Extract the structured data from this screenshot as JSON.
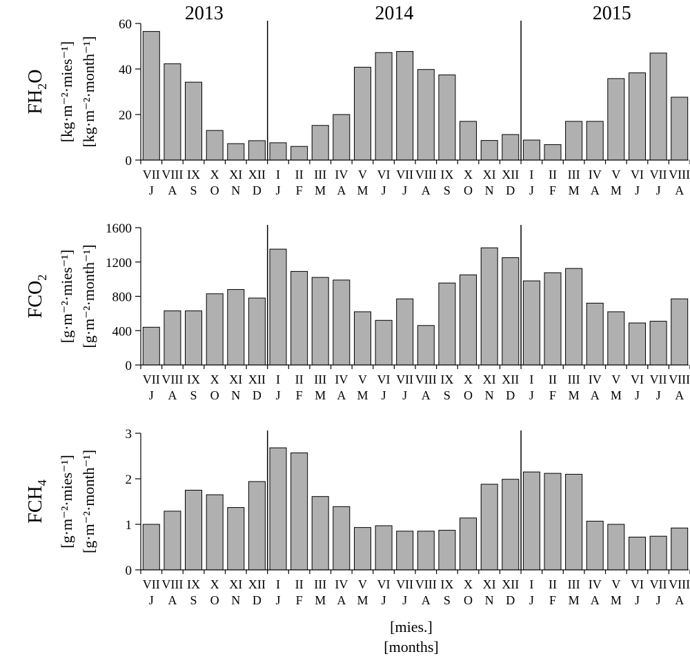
{
  "years": [
    "2013",
    "2014",
    "2015"
  ],
  "months_pl": [
    "VII",
    "VIII",
    "IX",
    "X",
    "XI",
    "XII",
    "I",
    "II",
    "III",
    "IV",
    "V",
    "VI",
    "VII",
    "VIII",
    "IX",
    "X",
    "XI",
    "XII",
    "I",
    "II",
    "III",
    "IV",
    "V",
    "VI",
    "VII",
    "VIII"
  ],
  "months_en": [
    "J",
    "A",
    "S",
    "O",
    "N",
    "D",
    "J",
    "F",
    "M",
    "A",
    "M",
    "J",
    "J",
    "A",
    "S",
    "O",
    "N",
    "D",
    "J",
    "F",
    "M",
    "A",
    "M",
    "J",
    "J",
    "A"
  ],
  "xlabel": [
    "[mies.]",
    "[months]"
  ],
  "colors": {
    "bar_fill": "#b0b0b0",
    "bar_stroke": "#000000"
  },
  "chart_data": [
    {
      "type": "bar",
      "ylabel": {
        "main": "FH",
        "sub": "2",
        "post": "O",
        "unit_pl": "[kg·m⁻²·mies⁻¹]",
        "unit_en": "[kg·m⁻²·month⁻¹]"
      },
      "ylim": [
        0,
        60
      ],
      "yticks": [
        0,
        20,
        40,
        60
      ],
      "values": [
        56.5,
        42.3,
        34.2,
        13.0,
        7.2,
        8.5,
        7.6,
        6.0,
        15.2,
        20.0,
        40.8,
        47.2,
        47.7,
        39.8,
        37.4,
        17.0,
        8.6,
        11.2,
        8.8,
        6.8,
        17.0,
        17.0,
        35.8,
        38.3,
        47.0,
        27.6
      ]
    },
    {
      "type": "bar",
      "ylabel": {
        "main": "FCO",
        "sub": "2",
        "post": "",
        "unit_pl": "[g·m⁻²·mies⁻¹]",
        "unit_en": "[g·m⁻²·month⁻¹]"
      },
      "ylim": [
        0,
        1600
      ],
      "yticks": [
        0,
        400,
        800,
        1200,
        1600
      ],
      "values": [
        440,
        630,
        630,
        830,
        880,
        780,
        1350,
        1090,
        1020,
        990,
        620,
        520,
        770,
        460,
        955,
        1050,
        1365,
        1250,
        980,
        1075,
        1125,
        720,
        620,
        490,
        510,
        770
      ]
    },
    {
      "type": "bar",
      "ylabel": {
        "main": "FCH",
        "sub": "4",
        "post": "",
        "unit_pl": "[g·m⁻²·mies⁻¹]",
        "unit_en": "[g·m⁻²·month⁻¹]"
      },
      "ylim": [
        0,
        3
      ],
      "yticks": [
        0,
        1,
        2,
        3
      ],
      "values": [
        1.0,
        1.29,
        1.75,
        1.65,
        1.37,
        1.94,
        2.68,
        2.57,
        1.61,
        1.39,
        0.93,
        0.97,
        0.85,
        0.85,
        0.87,
        1.14,
        1.88,
        1.99,
        2.15,
        2.12,
        2.1,
        1.07,
        1.0,
        0.72,
        0.74,
        0.92
      ]
    }
  ]
}
